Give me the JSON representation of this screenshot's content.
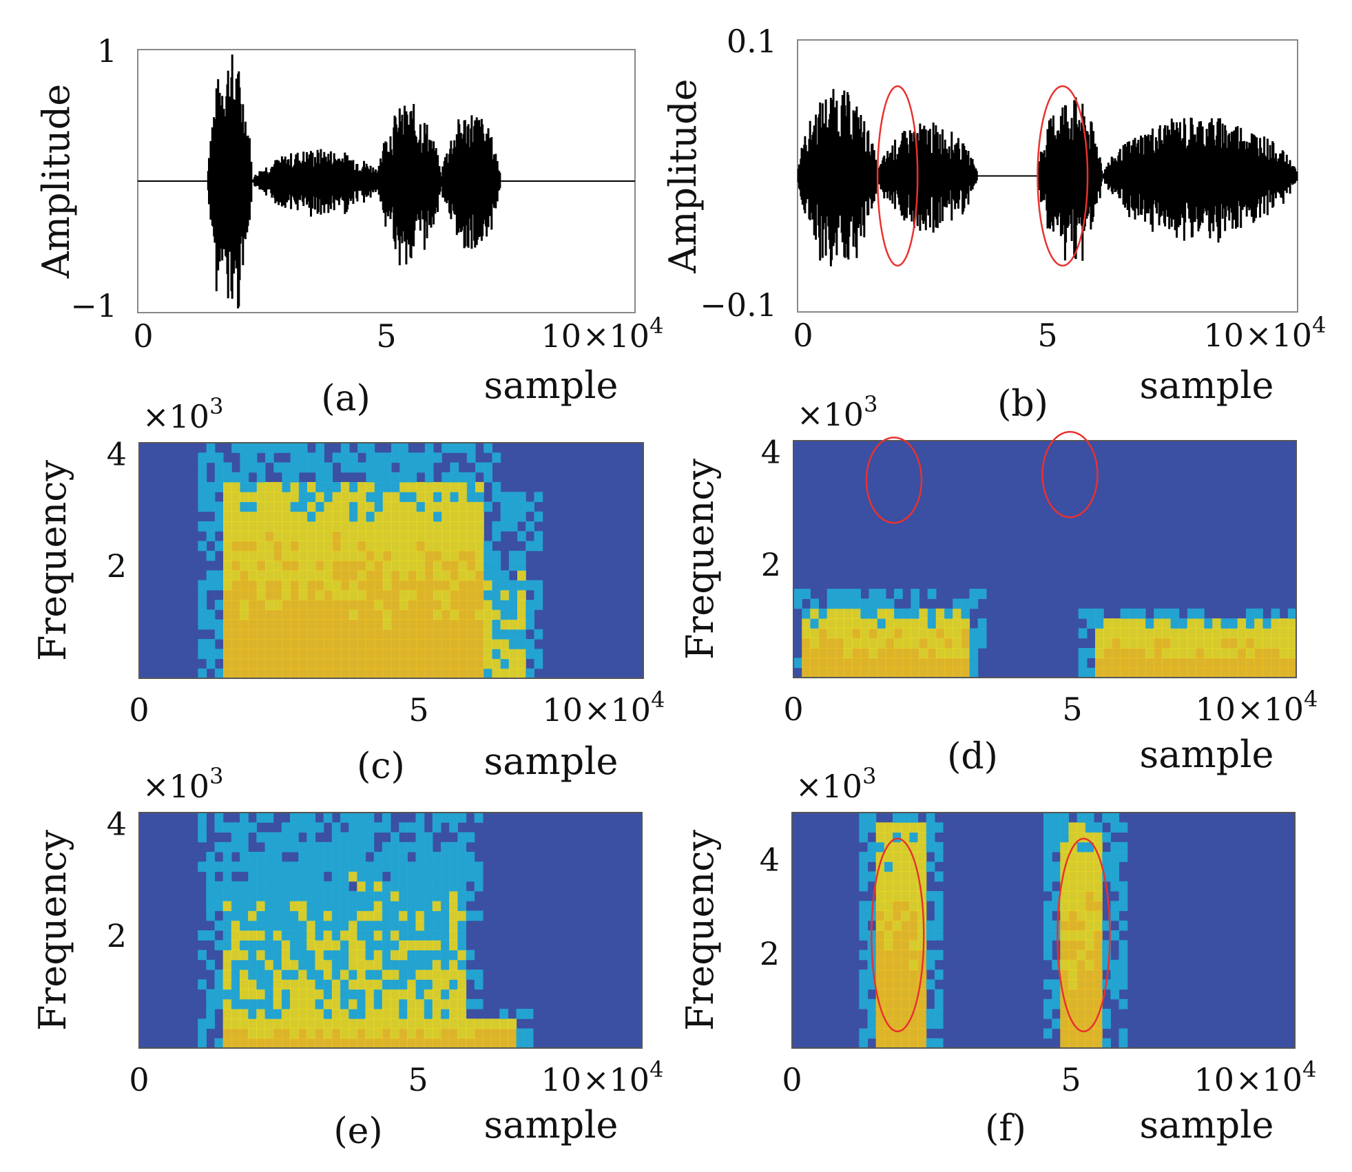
{
  "figure": {
    "panels": [
      {
        "id": "a",
        "caption": "(a)",
        "kind": "waveform",
        "ylabel": "Amplitude",
        "xlabel": "sample",
        "yticks": [
          "1",
          "−1"
        ],
        "xticks": [
          "0",
          "5",
          "10"
        ],
        "x_multiplier": "×10",
        "x_exponent": "4"
      },
      {
        "id": "b",
        "caption": "(b)",
        "kind": "waveform",
        "ylabel": "Amplitude",
        "xlabel": "sample",
        "yticks": [
          "0.1",
          "−0.1"
        ],
        "xticks": [
          "0",
          "5",
          "10"
        ],
        "x_multiplier": "×10",
        "x_exponent": "4"
      },
      {
        "id": "c",
        "caption": "(c)",
        "kind": "spectrogram",
        "ylabel": "Frequency",
        "xlabel": "sample",
        "yticks": [
          "4",
          "2"
        ],
        "xticks": [
          "0",
          "5",
          "10"
        ],
        "x_multiplier": "×10",
        "x_exponent": "4",
        "y_multiplier": "×10",
        "y_exponent": "3"
      },
      {
        "id": "d",
        "caption": "(d)",
        "kind": "spectrogram",
        "ylabel": "Frequency",
        "xlabel": "sample",
        "yticks": [
          "4",
          "2"
        ],
        "xticks": [
          "0",
          "5",
          "10"
        ],
        "x_multiplier": "×10",
        "x_exponent": "4",
        "y_multiplier": "×10",
        "y_exponent": "3"
      },
      {
        "id": "e",
        "caption": "(e)",
        "kind": "spectrogram",
        "ylabel": "Frequency",
        "xlabel": "sample",
        "yticks": [
          "4",
          "2"
        ],
        "xticks": [
          "0",
          "5",
          "10"
        ],
        "x_multiplier": "×10",
        "x_exponent": "4",
        "y_multiplier": "×10",
        "y_exponent": "3"
      },
      {
        "id": "f",
        "caption": "(f)",
        "kind": "spectrogram",
        "ylabel": "Frequency",
        "xlabel": "sample",
        "yticks": [
          "4",
          "2"
        ],
        "xticks": [
          "0",
          "5",
          "10"
        ],
        "x_multiplier": "×10",
        "x_exponent": "4",
        "y_multiplier": "×10",
        "y_exponent": "3"
      }
    ]
  },
  "colors": {
    "waveform": "#000000",
    "highlight": "#e8322e",
    "spec_low": "#3b4fa3",
    "spec_mid": "#21b0d8",
    "spec_high": "#f2e11a",
    "peak": "#f9c617"
  },
  "chart_data": [
    {
      "panel": "a",
      "type": "line",
      "title": "",
      "xlabel": "sample",
      "ylabel": "Amplitude",
      "xunit_exponent": 4,
      "xlim": [
        0,
        10
      ],
      "ylim": [
        -1,
        1
      ],
      "segments": [
        {
          "x_start": 1.4,
          "x_end": 2.3,
          "peak": 1.0
        },
        {
          "x_start": 2.3,
          "x_end": 5.0,
          "peak": 0.25
        },
        {
          "x_start": 4.8,
          "x_end": 6.1,
          "peak": 0.6
        },
        {
          "x_start": 6.1,
          "x_end": 7.3,
          "peak": 0.55
        }
      ],
      "silence": [
        [
          0,
          1.4
        ],
        [
          7.3,
          10
        ]
      ]
    },
    {
      "panel": "b",
      "type": "line",
      "title": "",
      "xlabel": "sample",
      "ylabel": "Amplitude",
      "xunit_exponent": 4,
      "xlim": [
        0,
        10
      ],
      "ylim": [
        -0.1,
        0.1
      ],
      "segments": [
        {
          "x_start": 0,
          "x_end": 1.6,
          "peak": 0.065
        },
        {
          "x_start": 1.6,
          "x_end": 3.6,
          "peak": 0.04
        },
        {
          "x_start": 4.8,
          "x_end": 6.1,
          "peak": 0.06
        },
        {
          "x_start": 6.1,
          "x_end": 10,
          "peak": 0.045
        }
      ],
      "highlighted_regions": [
        {
          "x_center": 2.0,
          "x_width": 0.8
        },
        {
          "x_center": 5.3,
          "x_width": 1.0
        }
      ]
    },
    {
      "panel": "c",
      "type": "heatmap",
      "xlabel": "sample",
      "ylabel": "Frequency",
      "xunit_exponent": 4,
      "yunit_exponent": 3,
      "xlim": [
        0,
        10
      ],
      "ylim": [
        0,
        4.2
      ],
      "high_energy_regions": [
        {
          "x_start": 1.6,
          "x_end": 6.8,
          "freq_max": 3.5,
          "level": "high"
        },
        {
          "x_start": 6.8,
          "x_end": 7.6,
          "freq_max": 2.5,
          "level": "medium"
        }
      ]
    },
    {
      "panel": "d",
      "type": "heatmap",
      "xlabel": "sample",
      "ylabel": "Frequency",
      "xunit_exponent": 4,
      "yunit_exponent": 3,
      "xlim": [
        0,
        10
      ],
      "ylim": [
        0,
        4.2
      ],
      "high_energy_regions": [
        {
          "x_start": 0.2,
          "x_end": 3.5,
          "freq_max": 1.2,
          "level": "high"
        },
        {
          "x_start": 6.0,
          "x_end": 10,
          "freq_max": 1.0,
          "level": "high"
        }
      ],
      "highlighted_regions": [
        {
          "x_center": 2.0,
          "freq_center": 3.5
        },
        {
          "x_center": 5.5,
          "freq_center": 3.6
        }
      ]
    },
    {
      "panel": "e",
      "type": "heatmap",
      "xlabel": "sample",
      "ylabel": "Frequency",
      "xunit_exponent": 4,
      "yunit_exponent": 3,
      "xlim": [
        0,
        10
      ],
      "ylim": [
        0,
        4.2
      ],
      "high_energy_regions": [
        {
          "x_start": 1.6,
          "x_end": 7.5,
          "freq_max": 0.6,
          "level": "high"
        },
        {
          "x_start": 1.6,
          "x_end": 6.5,
          "freq_max": 4.2,
          "level": "medium"
        }
      ]
    },
    {
      "panel": "f",
      "type": "heatmap",
      "xlabel": "sample",
      "ylabel": "Frequency",
      "xunit_exponent": 4,
      "yunit_exponent": 3,
      "xlim": [
        0,
        10
      ],
      "ylim": [
        0,
        5
      ],
      "high_energy_regions": [
        {
          "x_start": 1.7,
          "x_end": 2.6,
          "freq_max": 4.8,
          "level": "high"
        },
        {
          "x_start": 5.4,
          "x_end": 6.2,
          "freq_max": 4.8,
          "level": "high"
        }
      ],
      "highlighted_regions": [
        {
          "x_center": 2.1,
          "freq_center": 2.4
        },
        {
          "x_center": 5.8,
          "freq_center": 2.4
        }
      ]
    }
  ]
}
